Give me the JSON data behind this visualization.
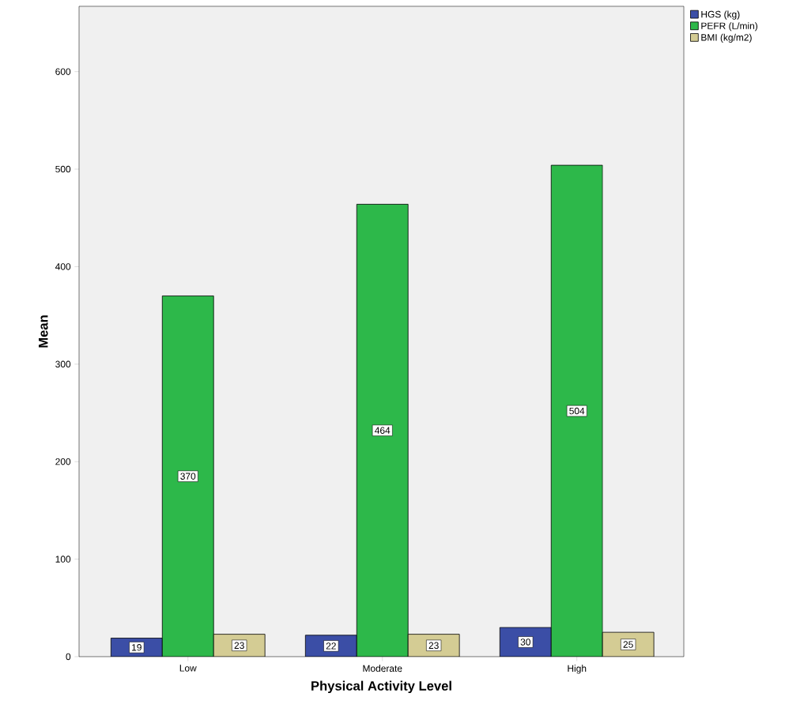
{
  "chart_data": {
    "type": "bar",
    "xlabel": "Physical Activity Level",
    "ylabel": "Mean",
    "categories": [
      "Low",
      "Moderate",
      "High"
    ],
    "series": [
      {
        "name": "HGS (kg)",
        "color": "#3b4ea6",
        "values": [
          19,
          22,
          30
        ]
      },
      {
        "name": "PEFR (L/min)",
        "color": "#2db84a",
        "values": [
          370,
          464,
          504
        ]
      },
      {
        "name": "BMI (kg/m2)",
        "color": "#d4cc94",
        "values": [
          23,
          23,
          25
        ]
      }
    ],
    "ylim": [
      0,
      667
    ],
    "yticks": [
      0,
      100,
      200,
      300,
      400,
      500,
      600
    ],
    "data_labels": true,
    "legend": "top right"
  }
}
